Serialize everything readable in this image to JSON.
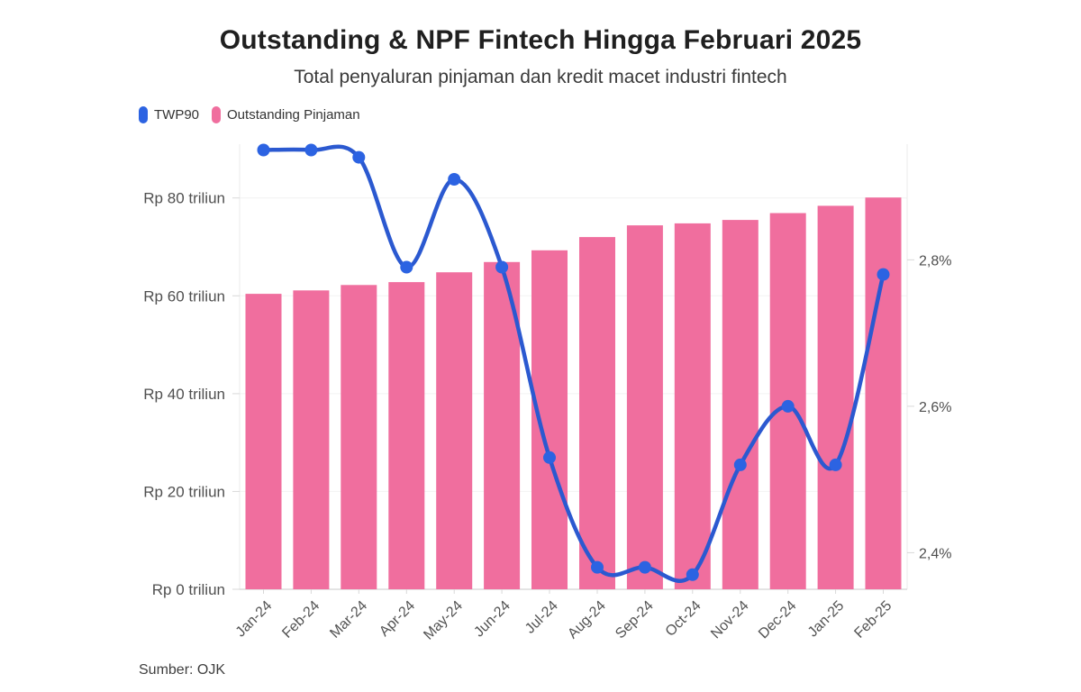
{
  "page": {
    "title": "Outstanding & NPF Fintech Hingga Februari 2025",
    "subtitle": "Total penyaluran pinjaman dan kredit macet industri fintech",
    "source": "Sumber: OJK"
  },
  "legend": [
    {
      "label": "TWP90",
      "color": "#2c63e2"
    },
    {
      "label": "Outstanding Pinjaman",
      "color": "#f06e9e"
    }
  ],
  "chart_data": {
    "type": "bar+line dual-axis combo",
    "categories": [
      "Jan-24",
      "Feb-24",
      "Mar-24",
      "Apr-24",
      "May-24",
      "Jun-24",
      "Jul-24",
      "Aug-24",
      "Sep-24",
      "Oct-24",
      "Nov-24",
      "Dec-24",
      "Jan-25",
      "Feb-25"
    ],
    "series": [
      {
        "name": "Outstanding Pinjaman",
        "type": "bar",
        "axis": "left",
        "unit": "Rp triliun",
        "color": "#f06e9e",
        "values": [
          60.4,
          61.1,
          62.2,
          62.8,
          64.8,
          66.9,
          69.3,
          72.0,
          74.4,
          74.8,
          75.5,
          76.9,
          78.4,
          80.1
        ]
      },
      {
        "name": "TWP90",
        "type": "line",
        "axis": "right",
        "unit": "%",
        "color": "#2b59d0",
        "point_color": "#2c63e2",
        "values": [
          2.95,
          2.95,
          2.94,
          2.79,
          2.91,
          2.79,
          2.53,
          2.38,
          2.38,
          2.37,
          2.52,
          2.6,
          2.52,
          2.78
        ]
      }
    ],
    "left_axis": {
      "tick_labels": [
        "Rp 0 triliun",
        "Rp 20 triliun",
        "Rp 40 triliun",
        "Rp 60 triliun",
        "Rp 80 triliun"
      ],
      "tick_values": [
        0,
        20,
        40,
        60,
        80
      ],
      "range": [
        0,
        91
      ]
    },
    "right_axis": {
      "tick_labels": [
        "2,4%",
        "2,6%",
        "2,8%"
      ],
      "tick_values": [
        2.4,
        2.6,
        2.8
      ],
      "range": [
        2.35,
        2.958
      ]
    },
    "grid": "faint horizontal gridlines",
    "legend_position": "top-left",
    "x_label_rotation": -45
  }
}
